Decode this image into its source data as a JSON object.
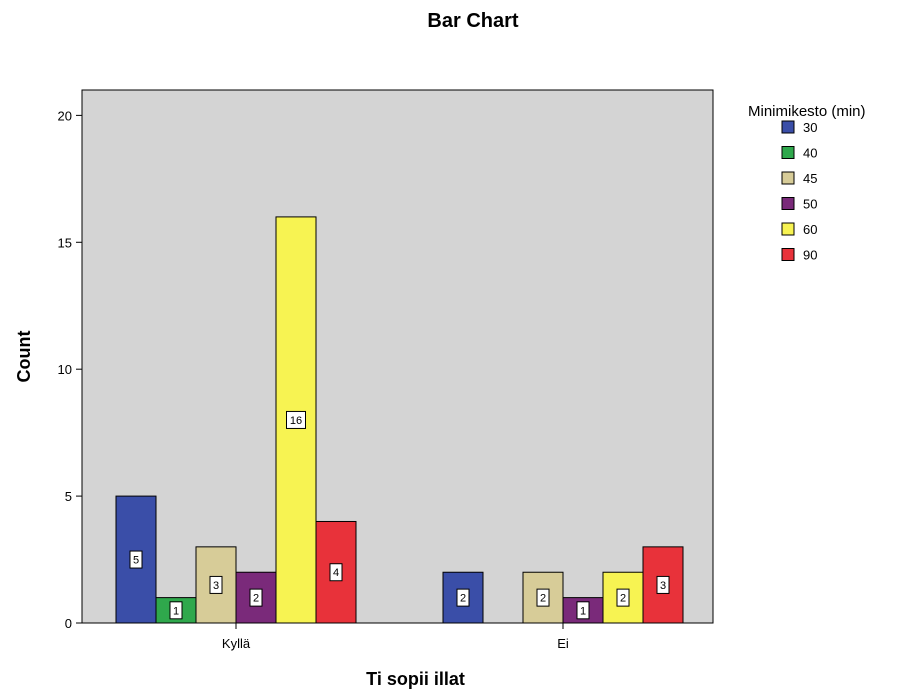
{
  "chart_data": {
    "type": "bar",
    "title": "Bar Chart",
    "xlabel": "Ti sopii illat",
    "ylabel": "Count",
    "categories": [
      "Kyllä",
      "Ei"
    ],
    "ylim": [
      0,
      21
    ],
    "yticks": [
      0,
      5,
      10,
      15,
      20
    ],
    "legend": {
      "title": "Minimikesto (min)",
      "position": "right"
    },
    "plot_background": "#d4d4d4",
    "series": [
      {
        "name": "30",
        "color": "#3a4ea8",
        "values": [
          5,
          2
        ]
      },
      {
        "name": "40",
        "color": "#2fa84c",
        "values": [
          1,
          0
        ]
      },
      {
        "name": "45",
        "color": "#d7cc98",
        "values": [
          3,
          2
        ]
      },
      {
        "name": "50",
        "color": "#7a2a7a",
        "values": [
          2,
          1
        ]
      },
      {
        "name": "60",
        "color": "#f7f352",
        "values": [
          16,
          2
        ]
      },
      {
        "name": "90",
        "color": "#e8323a",
        "values": [
          4,
          3
        ]
      }
    ]
  }
}
